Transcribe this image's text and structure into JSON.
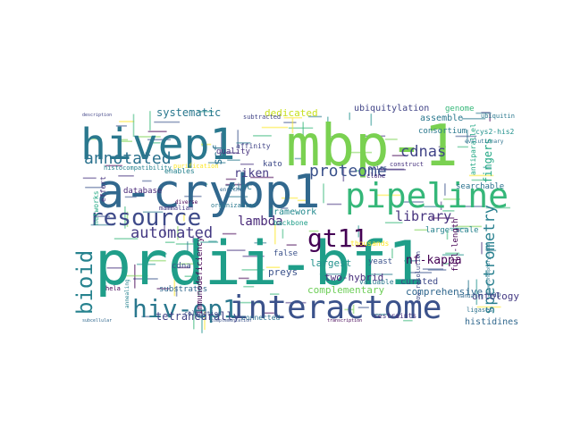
{
  "words": [
    {
      "text": "prdii-bf1",
      "color": "#1f9e89"
    },
    {
      "text": "mbp-1",
      "color": "#7ad151"
    },
    {
      "text": "a-crybp1",
      "color": "#31688e"
    },
    {
      "text": "hivep1",
      "color": "#2a788e"
    },
    {
      "text": "pipeline",
      "color": "#35b779"
    },
    {
      "text": "interactome",
      "color": "#3b528b"
    },
    {
      "text": "hiv-ep1",
      "color": "#2a788e"
    },
    {
      "text": "resource",
      "color": "#3e4a89"
    },
    {
      "text": "gt11",
      "color": "#440154"
    },
    {
      "text": "bioid",
      "color": "#26828e"
    },
    {
      "text": "annotated",
      "color": "#2c728e"
    },
    {
      "text": "proteome",
      "color": "#3b528b"
    },
    {
      "text": "spectrometry",
      "color": "#277f8e"
    },
    {
      "text": "automated",
      "color": "#443983"
    },
    {
      "text": "library",
      "color": "#46327e"
    },
    {
      "text": "cdnas",
      "color": "#414487"
    },
    {
      "text": "nf-kappa",
      "color": "#440154"
    },
    {
      "text": "tetrahedrally",
      "color": "#414487"
    },
    {
      "text": "lambda",
      "color": "#482878"
    },
    {
      "text": "fingers",
      "color": "#22a884"
    },
    {
      "text": "riken",
      "color": "#443983"
    },
    {
      "text": "complementary",
      "color": "#6ece58"
    },
    {
      "text": "systematic",
      "color": "#2a788e"
    },
    {
      "text": "dedicated",
      "color": "#c8e020"
    },
    {
      "text": "comprehensive",
      "color": "#31688e"
    },
    {
      "text": "two-hybrid",
      "color": "#472d7b"
    },
    {
      "text": "framework",
      "color": "#23898e"
    },
    {
      "text": "scf",
      "color": "#2c728e"
    },
    {
      "text": "curated",
      "color": "#3e4a89"
    },
    {
      "text": "largest",
      "color": "#21918c"
    },
    {
      "text": "preys",
      "color": "#3b528b"
    },
    {
      "text": "ontology",
      "color": "#443983"
    },
    {
      "text": "histidines",
      "color": "#31688e"
    },
    {
      "text": "assemble",
      "color": "#2a788e"
    },
    {
      "text": "ubiquitylation",
      "color": "#414487"
    },
    {
      "text": "genome",
      "color": "#35b779"
    },
    {
      "text": "consortium",
      "color": "#2a788e"
    },
    {
      "text": "large-scale",
      "color": "#26828e"
    },
    {
      "text": "searchable",
      "color": "#2c728e"
    },
    {
      "text": "cdna",
      "color": "#3b528b"
    },
    {
      "text": "quality",
      "color": "#46327e"
    },
    {
      "text": "zinc",
      "color": "#2a788e"
    },
    {
      "text": "backbone",
      "color": "#1f9e89"
    },
    {
      "text": "kato",
      "color": "#3e4a89"
    },
    {
      "text": "database",
      "color": "#482878"
    },
    {
      "text": "substrates",
      "color": "#31688e"
    },
    {
      "text": "hela",
      "color": "#440154"
    },
    {
      "text": "connected",
      "color": "#2c728e"
    },
    {
      "text": "false",
      "color": "#3b528b"
    },
    {
      "text": "yeast",
      "color": "#3b528b"
    },
    {
      "text": "thousands",
      "color": "#fde725"
    },
    {
      "text": "valuable",
      "color": "#2a788e"
    },
    {
      "text": "full-length",
      "color": "#440154"
    },
    {
      "text": "low-resolution",
      "color": "#3e4a89"
    },
    {
      "text": "effort",
      "color": "#46327e"
    },
    {
      "text": "networks",
      "color": "#22a884"
    },
    {
      "text": "affinity",
      "color": "#414487"
    },
    {
      "text": "enables",
      "color": "#26828e"
    },
    {
      "text": "diverse",
      "color": "#440154"
    },
    {
      "text": "mammalian",
      "color": "#443983"
    },
    {
      "text": "organization",
      "color": "#2a788e"
    },
    {
      "text": "enriched",
      "color": "#31688e"
    },
    {
      "text": "collection",
      "color": "#3b528b"
    },
    {
      "text": "restraints",
      "color": "#46327e"
    },
    {
      "text": "ligases",
      "color": "#2c728e"
    },
    {
      "text": "immunodeficiency",
      "color": "#440154"
    },
    {
      "text": "subtracted",
      "color": "#414487"
    },
    {
      "text": "ubiquitin",
      "color": "#2a788e"
    },
    {
      "text": "pairs",
      "color": "#3e4a89"
    },
    {
      "text": "clone",
      "color": "#482878"
    },
    {
      "text": "cys2-his2",
      "color": "#21918c"
    },
    {
      "text": "antiparallel",
      "color": "#22a884"
    },
    {
      "text": "histocompatibility",
      "color": "#26828e"
    },
    {
      "text": "purification",
      "color": "#fde725"
    },
    {
      "text": "manually",
      "color": "#31688e"
    },
    {
      "text": "map",
      "color": "#3b528b"
    },
    {
      "text": "construct",
      "color": "#46327e"
    },
    {
      "text": "evolutionary",
      "color": "#2c728e"
    },
    {
      "text": "description",
      "color": "#414487"
    },
    {
      "text": "annealing",
      "color": "#26828e"
    },
    {
      "text": "transcription",
      "color": "#440154"
    },
    {
      "text": "subcellular",
      "color": "#31688e"
    },
    {
      "text": "complementation",
      "color": "#3b528b"
    },
    {
      "text": "hyperphosphorylated",
      "color": "#2a788e"
    }
  ]
}
